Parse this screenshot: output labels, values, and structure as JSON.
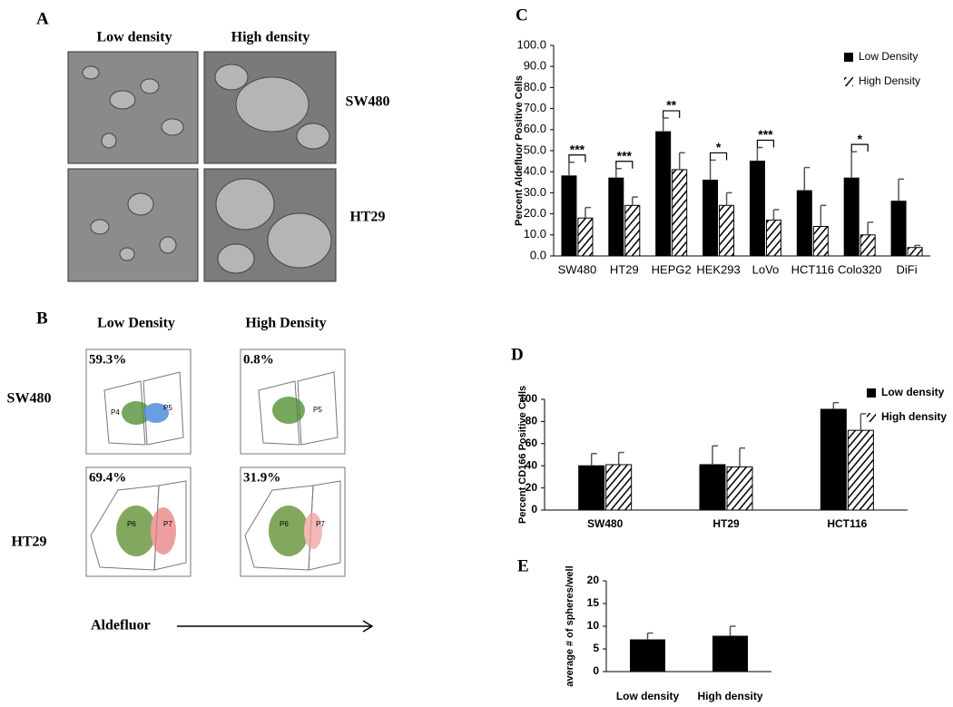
{
  "panels": {
    "A": {
      "label": "A",
      "columns": [
        "Low density",
        "High density"
      ],
      "rows": [
        "SW480",
        "HT29"
      ]
    },
    "B": {
      "label": "B",
      "columns": [
        "Low Density",
        "High Density"
      ],
      "rows": [
        "SW480",
        "HT29"
      ],
      "percents": [
        "59.3%",
        "0.8%",
        "69.4%",
        "31.9%"
      ],
      "gates": [
        [
          "P4",
          "P5"
        ],
        [
          "P5"
        ],
        [
          "P6",
          "P7"
        ],
        [
          "P6",
          "P7"
        ]
      ],
      "x_label": "Aldefluor"
    }
  },
  "chart_data": [
    {
      "type": "bar",
      "panel_label": "C",
      "y_label": "Percent Aldefluor Positive Cells",
      "categories": [
        "SW480",
        "HT29",
        "HEPG2",
        "HEK293",
        "LoVo",
        "HCT116",
        "Colo320",
        "DiFi"
      ],
      "series": [
        {
          "name": "Low Density",
          "color": "#000000",
          "values": [
            38,
            37,
            59,
            36,
            45,
            31,
            37,
            26
          ],
          "errors": [
            6.5,
            4.5,
            6.5,
            9.5,
            6.5,
            11,
            12.5,
            10.5
          ]
        },
        {
          "name": "High Density",
          "color": "#000000",
          "hatch": true,
          "values": [
            18,
            24,
            41,
            24,
            17,
            14,
            10,
            4
          ],
          "errors": [
            5,
            4,
            8,
            6,
            5,
            10,
            6,
            1
          ]
        }
      ],
      "annotations": [
        "***",
        "***",
        "**",
        "*",
        "***",
        null,
        "*",
        null
      ],
      "ylim": [
        0,
        100
      ],
      "yticks": [
        {
          "value": 0,
          "label": "0.0"
        },
        {
          "value": 10,
          "label": "10.0"
        },
        {
          "value": 20,
          "label": "20.0"
        },
        {
          "value": 30,
          "label": "30.0"
        },
        {
          "value": 40,
          "label": "40.0"
        },
        {
          "value": 50,
          "label": "50.0"
        },
        {
          "value": 60,
          "label": "60.0"
        },
        {
          "value": 70,
          "label": "70.0"
        },
        {
          "value": 80,
          "label": "80.0"
        },
        {
          "value": 90,
          "label": "90.0"
        },
        {
          "value": 100,
          "label": "100.0"
        }
      ],
      "legend": "upper right"
    },
    {
      "type": "bar",
      "panel_label": "D",
      "y_label": "Percent CD166 Positive Cells",
      "categories": [
        "SW480",
        "HT29",
        "HCT116"
      ],
      "series": [
        {
          "name": "Low density",
          "color": "#000000",
          "values": [
            40,
            41,
            91
          ],
          "errors": [
            11,
            17,
            6
          ]
        },
        {
          "name": "High density",
          "color": "#000000",
          "hatch": true,
          "values": [
            41,
            39,
            72
          ],
          "errors": [
            11,
            17,
            15
          ]
        }
      ],
      "ylim": [
        0,
        100
      ],
      "yticks": [
        0,
        20,
        40,
        60,
        80,
        100
      ],
      "legend": "upper right"
    },
    {
      "type": "bar",
      "panel_label": "E",
      "y_label": "average # of spheres/well",
      "categories": [
        "Low density",
        "High density"
      ],
      "series": [
        {
          "color": "#000000",
          "values": [
            7,
            7.8
          ],
          "errors": [
            1.5,
            2.2
          ]
        }
      ],
      "ylim": [
        0,
        20
      ],
      "yticks": [
        0,
        5,
        10,
        15,
        20
      ]
    }
  ]
}
